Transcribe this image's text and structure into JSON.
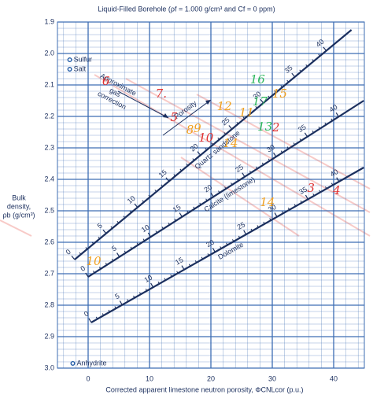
{
  "chart_data": {
    "type": "crossplot",
    "title": "Liquid-Filled Borehole (ρf = 1.000 g/cm³ and Cf = 0 ppm)",
    "x_label": "Corrected apparent limestone neutron porosity, ΦCNLcor (p.u.)",
    "y_label": [
      "Bulk",
      "density,",
      "ρb (g/cm³)"
    ],
    "xlim": [
      -5,
      45
    ],
    "ylim": [
      1.9,
      3.0
    ],
    "y_inverted": true,
    "xticks": [
      0,
      10,
      20,
      30,
      40
    ],
    "yticks": [
      1.9,
      {
        "value": 2,
        "label": "2.0"
      },
      2.1,
      2.2,
      2.3,
      2.4,
      2.5,
      2.6,
      2.7,
      2.8,
      2.9,
      {
        "value": 3,
        "label": "3.0"
      }
    ],
    "grid": true,
    "grid_color": "#3d6db3",
    "lines": [
      {
        "name": "Quartz sandstone",
        "color": "#1b2f5e",
        "x": [
          -2.2,
          42.9
        ],
        "y": [
          2.655,
          1.925
        ],
        "porosity": [
          0,
          44
        ],
        "porosity_labels": [
          0,
          5,
          10,
          15,
          20,
          25,
          30,
          35,
          40
        ]
      },
      {
        "name": "Calcite (limestone)",
        "color": "#1b2f5e",
        "x": [
          0,
          44.9
        ],
        "y": [
          2.71,
          2.15
        ],
        "porosity": [
          0,
          44
        ],
        "porosity_labels": [
          0,
          5,
          10,
          15,
          20,
          25,
          30,
          35,
          40
        ]
      },
      {
        "name": "Dolomite",
        "color": "#1b2f5e",
        "x": [
          0.5,
          44.9
        ],
        "y": [
          2.855,
          2.3625
        ],
        "porosity": [
          0,
          44
        ],
        "porosity_labels": [
          0,
          5,
          10,
          15,
          20,
          25,
          30,
          35,
          40
        ]
      }
    ],
    "points": [
      {
        "name": "Sulfur",
        "x": -3,
        "y": 2.02,
        "color": "#1f5aa6"
      },
      {
        "name": "Salt",
        "x": -3,
        "y": 2.05,
        "color": "#1f5aa6"
      },
      {
        "name": "Anhydrite",
        "x": -2.5,
        "y": 2.985,
        "color": "#1f5aa6"
      }
    ],
    "gas_correction_label": [
      "Approximate",
      "gas",
      "correction"
    ],
    "porosity_arrow_label": "Porosity",
    "annotations": [
      {
        "text": "6",
        "color": "#e03030",
        "x": 2.9,
        "y": 2.09
      },
      {
        "text": "7.",
        "color": "#e03030",
        "x": 11.9,
        "y": 2.13
      },
      {
        "text": "5",
        "color": "#e03030",
        "x": 14.0,
        "y": 2.205
      },
      {
        "text": "8",
        "color": "#f0a020",
        "x": 16.6,
        "y": 2.245
      },
      {
        "text": "9",
        "color": "#f0a020",
        "x": 17.8,
        "y": 2.24
      },
      {
        "text": "10",
        "color": "#e03030",
        "x": 19.2,
        "y": 2.27
      },
      {
        "text": "12",
        "color": "#f0a020",
        "x": 22.2,
        "y": 2.17
      },
      {
        "text": "11",
        "color": "#f0a020",
        "x": 25.8,
        "y": 2.19
      },
      {
        "text": "16",
        "color": "#2eb85c",
        "x": 27.6,
        "y": 2.085
      },
      {
        "text": "17",
        "color": "#2eb85c",
        "x": 28.0,
        "y": 2.155
      },
      {
        "text": "15",
        "color": "#f0a020",
        "x": 31.2,
        "y": 2.13
      },
      {
        "text": "14",
        "color": "#f0a020",
        "x": 23.2,
        "y": 2.2875
      },
      {
        "text": "13",
        "color": "#2eb85c",
        "x": 28.8,
        "y": 2.235
      },
      {
        "text": "2",
        "color": "#e03030",
        "x": 30.6,
        "y": 2.2375
      },
      {
        "text": "3",
        "color": "#e03030",
        "x": 36.3,
        "y": 2.43
      },
      {
        "text": "4",
        "color": "#e03030",
        "x": 40.5,
        "y": 2.4375
      },
      {
        "text": "10",
        "color": "#f0a020",
        "x": 0.9,
        "y": 2.6625
      },
      {
        "text": "14",
        "color": "#f0a020",
        "x": 29.2,
        "y": 2.475
      }
    ]
  }
}
